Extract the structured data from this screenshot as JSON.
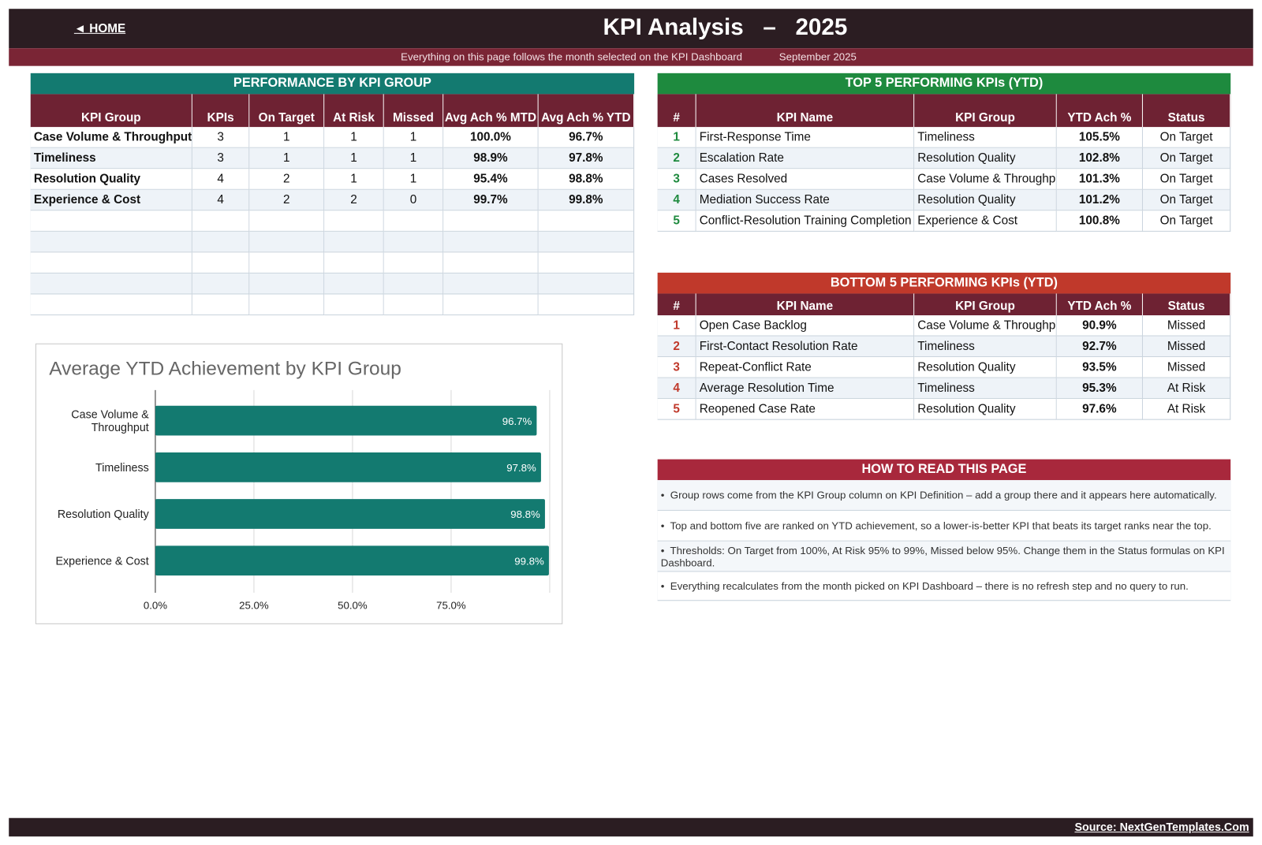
{
  "header": {
    "home": "◄ HOME",
    "title": "KPI Analysis   –   2025",
    "subtitle": "Everything on this page follows the month selected on the KPI Dashboard",
    "month": "September 2025"
  },
  "group_table": {
    "title": "PERFORMANCE BY KPI GROUP",
    "columns": [
      "KPI Group",
      "KPIs",
      "On Target",
      "At Risk",
      "Missed",
      "Avg Ach % MTD",
      "Avg Ach % YTD"
    ],
    "rows": [
      [
        "Case Volume & Throughput",
        "3",
        "1",
        "1",
        "1",
        "100.0%",
        "96.7%"
      ],
      [
        "Timeliness",
        "3",
        "1",
        "1",
        "1",
        "98.9%",
        "97.8%"
      ],
      [
        "Resolution Quality",
        "4",
        "2",
        "1",
        "1",
        "95.4%",
        "98.8%"
      ],
      [
        "Experience & Cost",
        "4",
        "2",
        "2",
        "0",
        "99.7%",
        "99.8%"
      ]
    ]
  },
  "top_table": {
    "title": "TOP 5 PERFORMING KPIs  (YTD)",
    "columns": [
      "#",
      "KPI Name",
      "KPI Group",
      "YTD Ach %",
      "Status"
    ],
    "rows": [
      [
        "1",
        "First-Response Time",
        "Timeliness",
        "105.5%",
        "On Target"
      ],
      [
        "2",
        "Escalation Rate",
        "Resolution Quality",
        "102.8%",
        "On Target"
      ],
      [
        "3",
        "Cases Resolved",
        "Case Volume & Throughput",
        "101.3%",
        "On Target"
      ],
      [
        "4",
        "Mediation Success Rate",
        "Resolution Quality",
        "101.2%",
        "On Target"
      ],
      [
        "5",
        "Conflict-Resolution Training Completion",
        "Experience & Cost",
        "100.8%",
        "On Target"
      ]
    ]
  },
  "bottom_table": {
    "title": "BOTTOM 5 PERFORMING KPIs  (YTD)",
    "columns": [
      "#",
      "KPI Name",
      "KPI Group",
      "YTD Ach %",
      "Status"
    ],
    "rows": [
      [
        "1",
        "Open Case Backlog",
        "Case Volume & Throughput",
        "90.9%",
        "Missed"
      ],
      [
        "2",
        "First-Contact Resolution Rate",
        "Timeliness",
        "92.7%",
        "Missed"
      ],
      [
        "3",
        "Repeat-Conflict Rate",
        "Resolution Quality",
        "93.5%",
        "Missed"
      ],
      [
        "4",
        "Average Resolution Time",
        "Timeliness",
        "95.3%",
        "At Risk"
      ],
      [
        "5",
        "Reopened Case Rate",
        "Resolution Quality",
        "97.6%",
        "At Risk"
      ]
    ]
  },
  "how_to": {
    "title": "HOW TO READ THIS PAGE",
    "items": [
      "Group rows come from the KPI Group column on KPI Definition – add a group there and it appears here automatically.",
      "Top and bottom five are ranked on YTD achievement, so a lower-is-better KPI that beats its target ranks near the top.",
      "Thresholds: On Target from 100%, At Risk 95% to 99%, Missed below 95%. Change them in the Status formulas on KPI Dashboard.",
      "Everything recalculates from the month picked on KPI Dashboard – there is no refresh step and no query to run."
    ]
  },
  "chart_data": {
    "type": "hbar",
    "title": "Average YTD Achievement by KPI Group",
    "categories": [
      "Case Volume & Throughput",
      "Timeliness",
      "Resolution Quality",
      "Experience & Cost"
    ],
    "values": [
      96.7,
      97.8,
      98.8,
      99.8
    ],
    "value_labels": [
      "96.7%",
      "97.8%",
      "98.8%",
      "99.8%"
    ],
    "color": "#137a70",
    "xlim": [
      0,
      100
    ],
    "xticks": [
      {
        "value": 0,
        "label": "0.0%"
      },
      {
        "value": 25,
        "label": "25.0%"
      },
      {
        "value": 50,
        "label": "50.0%"
      },
      {
        "value": 75,
        "label": "75.0%"
      }
    ],
    "grid": true
  },
  "footer": {
    "source": "Source: NextGenTemplates.Com"
  }
}
